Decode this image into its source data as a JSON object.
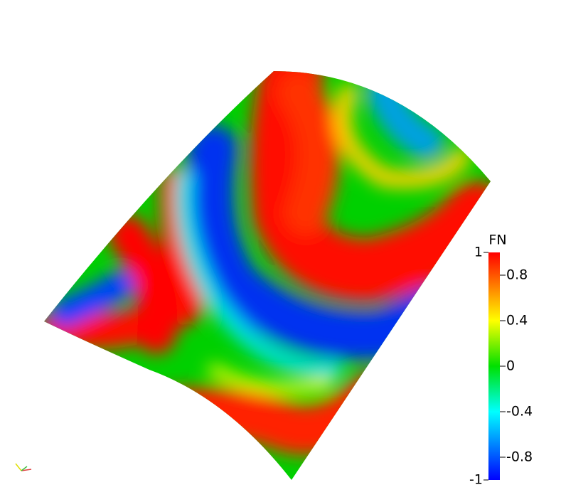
{
  "colorbar": {
    "title": "FN",
    "range": [
      -1,
      1
    ],
    "ticks": [
      0.8,
      0.4,
      0,
      -0.4,
      -0.8
    ]
  }
}
